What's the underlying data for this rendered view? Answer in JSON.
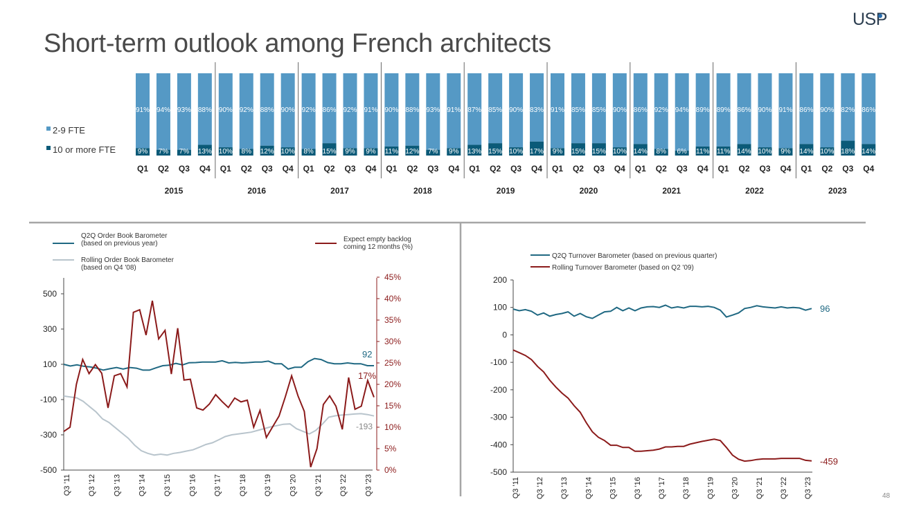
{
  "page": {
    "title": "Short-term outlook among French architects",
    "logo": "USP",
    "page_number": "48"
  },
  "colors": {
    "light_blue": "#5599c5",
    "dark_teal": "#0b5a78",
    "teal_line": "#1f6882",
    "grey_line": "#b8c4cc",
    "dark_red": "#8b1a1a"
  },
  "chart_data": [
    {
      "type": "bar",
      "stacked": true,
      "normalized": true,
      "legend": [
        "2-9 FTE",
        "10 or more FTE"
      ],
      "quarters": [
        "Q1",
        "Q2",
        "Q3",
        "Q4"
      ],
      "years": [
        "2015",
        "2016",
        "2017",
        "2018",
        "2019",
        "2020",
        "2021",
        "2022",
        "2023"
      ],
      "series": [
        {
          "name": "2-9 FTE",
          "labels": [
            "91%",
            "94%",
            "93%",
            "88%",
            "90%",
            "92%",
            "88%",
            "90%",
            "92%",
            "86%",
            "92%",
            "91%",
            "90%",
            "88%",
            "93%",
            "91%",
            "87%",
            "85%",
            "90%",
            "83%",
            "91%",
            "85%",
            "85%",
            "90%",
            "86%",
            "92%",
            "94%",
            "89%",
            "89%",
            "86%",
            "90%",
            "91%",
            "86%",
            "90%",
            "82%",
            "86%"
          ]
        },
        {
          "name": "10 or more FTE",
          "values": [
            9,
            7,
            7,
            13,
            10,
            8,
            12,
            10,
            8,
            15,
            9,
            9,
            11,
            12,
            7,
            9,
            13,
            15,
            10,
            17,
            9,
            15,
            15,
            10,
            14,
            8,
            6,
            11,
            11,
            14,
            10,
            9,
            14,
            10,
            18,
            14
          ]
        }
      ]
    },
    {
      "type": "line",
      "legend": [
        {
          "name": "Q2Q Order Book Barometer\n(based on previous year)",
          "axis": "left"
        },
        {
          "name": "Rolling Order Book Barometer\n(based on Q4 '08)",
          "axis": "left"
        },
        {
          "name": "Expect empty backlog\ncoming 12 months (%)",
          "axis": "right"
        }
      ],
      "x_tick_labels": [
        "Q3 '11",
        "Q3 '12",
        "Q3 '13",
        "Q3 '14",
        "Q3 '15",
        "Q3 '16",
        "Q3 '17",
        "Q3 '18",
        "Q3 '19",
        "Q3 '20",
        "Q3 '21",
        "Q3 '22",
        "Q3 '23"
      ],
      "left_ticks": [
        "500",
        "300",
        "100",
        "-100",
        "-300",
        "-500"
      ],
      "right_ticks": [
        "45%",
        "40%",
        "35%",
        "30%",
        "25%",
        "20%",
        "15%",
        "10%",
        "5%",
        "0%"
      ],
      "ylim_left": [
        -500,
        600
      ],
      "ylim_right": [
        0,
        45
      ],
      "series": [
        {
          "values": [
            100,
            90,
            97,
            89,
            85,
            78,
            67,
            75,
            82,
            73,
            82,
            78,
            67,
            67,
            80,
            92,
            95,
            105,
            97,
            109,
            110,
            113,
            113,
            113,
            120,
            108,
            111,
            108,
            110,
            113,
            113,
            118,
            103,
            103,
            73,
            83,
            83,
            115,
            133,
            127,
            110,
            103,
            103,
            108,
            103,
            103,
            92,
            92
          ]
        },
        {
          "values": [
            -80,
            -85,
            -90,
            -110,
            -140,
            -170,
            -210,
            -230,
            -260,
            -290,
            -320,
            -360,
            -390,
            -405,
            -415,
            -410,
            -415,
            -405,
            -400,
            -392,
            -385,
            -370,
            -355,
            -345,
            -328,
            -310,
            -300,
            -295,
            -290,
            -285,
            -275,
            -265,
            -255,
            -248,
            -240,
            -238,
            -265,
            -280,
            -295,
            -275,
            -240,
            -200,
            -192,
            -188,
            -185,
            -182,
            -180,
            -185,
            -193
          ]
        },
        {
          "values": [
            9,
            10,
            20,
            25.8,
            22.5,
            24.6,
            22.6,
            14.5,
            22,
            22.5,
            19.4,
            36.8,
            37.4,
            31.5,
            39.5,
            30.6,
            32.6,
            22.4,
            33.1,
            21,
            21.2,
            14.5,
            14,
            15.4,
            17.6,
            16,
            14.6,
            16.8,
            15.9,
            16.3,
            10,
            13.9,
            7.6,
            10.1,
            12.6,
            17.1,
            22,
            17.3,
            13.7,
            0.7,
            5,
            15.3,
            17.3,
            14.9,
            9.5,
            21.6,
            14.2,
            14.9,
            20.9,
            17
          ]
        }
      ],
      "end_labels": {
        "order_book": "92",
        "empty_backlog": "17%",
        "rolling": "-193"
      }
    },
    {
      "type": "line",
      "legend": [
        "Q2Q Turnover Barometer (based on previous quarter)",
        "Rolling Turnover Barometer (based on Q2 '09)"
      ],
      "x_tick_labels": [
        "Q3 '11",
        "Q3 '12",
        "Q3 '13",
        "Q3 '14",
        "Q3 '15",
        "Q3 '16",
        "Q3 '17",
        "Q3 '18",
        "Q3 '19",
        "Q3 '20",
        "Q3 '21",
        "Q3 '22",
        "Q3 '23"
      ],
      "y_ticks": [
        "200",
        "100",
        "0",
        "-100",
        "-200",
        "-300",
        "-400",
        "-500"
      ],
      "ylim": [
        -500,
        200
      ],
      "series": [
        {
          "values": [
            94,
            88,
            92,
            86,
            72,
            80,
            68,
            74,
            78,
            84,
            68,
            78,
            66,
            60,
            72,
            84,
            86,
            100,
            88,
            98,
            88,
            98,
            102,
            103,
            100,
            108,
            98,
            102,
            98,
            104,
            104,
            102,
            104,
            100,
            90,
            65,
            72,
            80,
            96,
            100,
            106,
            102,
            100,
            98,
            102,
            98,
            100,
            98,
            90,
            96
          ]
        },
        {
          "values": [
            -55,
            -65,
            -75,
            -90,
            -115,
            -135,
            -165,
            -190,
            -212,
            -230,
            -258,
            -282,
            -320,
            -353,
            -373,
            -385,
            -402,
            -402,
            -410,
            -410,
            -424,
            -424,
            -422,
            -420,
            -416,
            -408,
            -408,
            -406,
            -406,
            -398,
            -393,
            -388,
            -384,
            -380,
            -385,
            -410,
            -438,
            -453,
            -460,
            -458,
            -454,
            -452,
            -452,
            -452,
            -450,
            -450,
            -450,
            -450,
            -457,
            -459
          ]
        }
      ],
      "end_labels": {
        "q2q": "96",
        "rolling": "-459"
      }
    }
  ]
}
